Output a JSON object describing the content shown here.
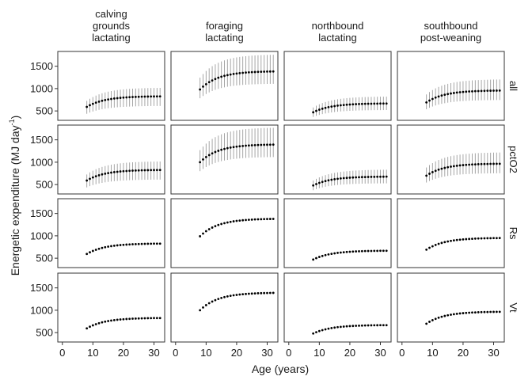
{
  "chart_data": {
    "type": "scatter",
    "layout": "facet-grid",
    "ylabel_main": "Energetic expenditure (MJ day",
    "ylabel_sup": "-1",
    "ylabel_close": ")",
    "xlabel": "Age (years)",
    "xlim": [
      -1.5,
      33.5
    ],
    "ylim": [
      290,
      1830
    ],
    "x_ticks": [
      0,
      10,
      20,
      30
    ],
    "y_ticks": [
      500,
      1000,
      1500
    ],
    "columns": [
      {
        "lines": [
          "calving",
          "grounds",
          "lactating"
        ]
      },
      {
        "lines": [
          "foraging",
          "lactating"
        ]
      },
      {
        "lines": [
          "northbound",
          "lactating"
        ]
      },
      {
        "lines": [
          "southbound",
          "post-weaning"
        ]
      }
    ],
    "rows": [
      "all",
      "pctO2",
      "Rs",
      "Vt"
    ],
    "age": [
      8,
      9,
      10,
      11,
      12,
      13,
      14,
      15,
      16,
      17,
      18,
      19,
      20,
      21,
      22,
      23,
      24,
      25,
      26,
      27,
      28,
      29,
      30,
      31,
      32
    ],
    "series": [
      {
        "row": "all",
        "col": 0,
        "start": 590,
        "plateau": 830,
        "rate": 0.17,
        "err": [
          0.26,
          0.23
        ]
      },
      {
        "row": "all",
        "col": 1,
        "start": 980,
        "plateau": 1390,
        "rate": 0.17,
        "err": [
          0.2,
          0.27
        ]
      },
      {
        "row": "all",
        "col": 2,
        "start": 470,
        "plateau": 670,
        "rate": 0.17,
        "err": [
          0.22,
          0.23
        ]
      },
      {
        "row": "all",
        "col": 3,
        "start": 690,
        "plateau": 960,
        "rate": 0.17,
        "err": [
          0.22,
          0.26
        ]
      },
      {
        "row": "pctO2",
        "col": 0,
        "start": 590,
        "plateau": 830,
        "rate": 0.17,
        "err": [
          0.26,
          0.23
        ]
      },
      {
        "row": "pctO2",
        "col": 1,
        "start": 1000,
        "plateau": 1400,
        "rate": 0.17,
        "err": [
          0.2,
          0.27
        ]
      },
      {
        "row": "pctO2",
        "col": 2,
        "start": 480,
        "plateau": 680,
        "rate": 0.17,
        "err": [
          0.22,
          0.23
        ]
      },
      {
        "row": "pctO2",
        "col": 3,
        "start": 700,
        "plateau": 970,
        "rate": 0.17,
        "err": [
          0.22,
          0.26
        ]
      },
      {
        "row": "Rs",
        "col": 0,
        "start": 595,
        "plateau": 830,
        "rate": 0.17,
        "err": null
      },
      {
        "row": "Rs",
        "col": 1,
        "start": 990,
        "plateau": 1385,
        "rate": 0.17,
        "err": null
      },
      {
        "row": "Rs",
        "col": 2,
        "start": 470,
        "plateau": 670,
        "rate": 0.17,
        "err": null
      },
      {
        "row": "Rs",
        "col": 3,
        "start": 690,
        "plateau": 955,
        "rate": 0.17,
        "err": null
      },
      {
        "row": "Vt",
        "col": 0,
        "start": 595,
        "plateau": 830,
        "rate": 0.17,
        "err": null
      },
      {
        "row": "Vt",
        "col": 1,
        "start": 1000,
        "plateau": 1395,
        "rate": 0.17,
        "err": null
      },
      {
        "row": "Vt",
        "col": 2,
        "start": 480,
        "plateau": 670,
        "rate": 0.17,
        "err": null
      },
      {
        "row": "Vt",
        "col": 3,
        "start": 700,
        "plateau": 970,
        "rate": 0.17,
        "err": null
      }
    ],
    "point_color": "#000000",
    "errorbar_color": "#a6a6a6",
    "panel_border_color": "#333333",
    "grid": false,
    "legend": "none"
  }
}
